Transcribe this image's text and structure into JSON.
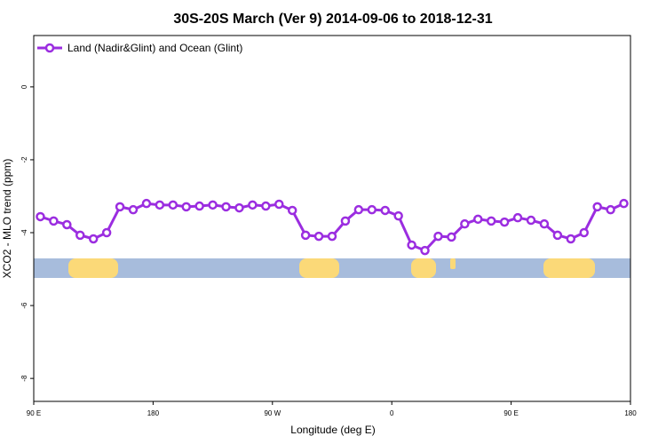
{
  "chart_data": {
    "type": "line",
    "title": "30S-20S March (Ver 9)   2014-09-06 to 2018-12-31",
    "x_label": "Longitude (deg E)",
    "y_label": "XCO2 - MLO trend (ppm)",
    "xlim": [
      90,
      540
    ],
    "ylim": [
      -8.63,
      1.41
    ],
    "xticks": [
      {
        "value": 90,
        "label": "90 E"
      },
      {
        "value": 180,
        "label": "180"
      },
      {
        "value": 270,
        "label": "90 W"
      },
      {
        "value": 360,
        "label": "0"
      },
      {
        "value": 450,
        "label": "90 E"
      },
      {
        "value": 540,
        "label": "180"
      }
    ],
    "yticks": [
      0,
      -2,
      -4,
      -6,
      -8
    ],
    "legend": "top-left",
    "x": [
      95,
      105,
      115,
      125,
      135,
      145,
      155,
      165,
      175,
      185,
      195,
      205,
      215,
      225,
      235,
      245,
      255,
      265,
      275,
      285,
      295,
      305,
      315,
      325,
      335,
      345,
      355,
      365,
      375,
      385,
      395,
      405,
      415,
      425,
      435,
      445,
      455,
      465,
      475,
      485,
      495,
      505,
      515,
      525,
      535
    ],
    "series": [
      {
        "name": "Land (Nadir&Glint) and Ocean (Glint)",
        "color": "#9b2de0",
        "values": [
          -3.56,
          -3.68,
          -3.78,
          -4.07,
          -4.17,
          -4.0,
          -3.29,
          -3.37,
          -3.2,
          -3.24,
          -3.24,
          -3.29,
          -3.27,
          -3.24,
          -3.29,
          -3.32,
          -3.24,
          -3.27,
          -3.22,
          -3.39,
          -4.07,
          -4.1,
          -4.1,
          -3.68,
          -3.37,
          -3.37,
          -3.39,
          -3.54,
          -4.34,
          -4.49,
          -4.1,
          -4.12,
          -3.76,
          -3.63,
          -3.68,
          -3.71,
          -3.59,
          -3.66,
          -3.76,
          -4.07,
          -4.17,
          -4.0,
          -3.29,
          -3.37,
          -3.2
        ]
      }
    ]
  }
}
